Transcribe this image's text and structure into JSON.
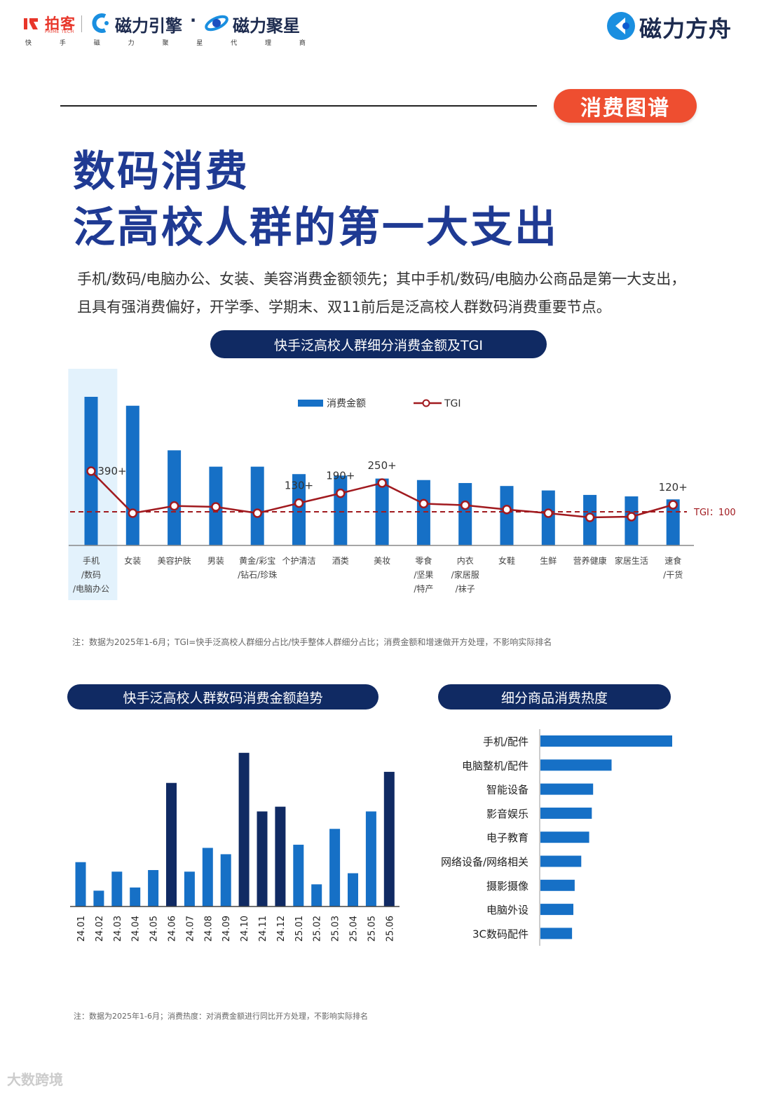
{
  "header": {
    "brand_paike": "拍客",
    "brand_paike_sub": "PRIME TECH",
    "brand_engine": "磁力引擎",
    "separator": "·",
    "brand_star": "磁力聚星",
    "sub_chars": [
      "快",
      "手",
      "磁",
      "力",
      "聚",
      "星",
      "代",
      "理",
      "商"
    ],
    "brand_ark": "磁力方舟"
  },
  "section_tag": "消费图谱",
  "title_line1": "数码消费",
  "title_line2": "泛高校人群的第一大支出",
  "description": "手机/数码/电脑办公、女装、美容消费金额领先；其中手机/数码/电脑办公商品是第一大支出，且具有强消费偏好，开学季、学期末、双11前后是泛高校人群数码消费重要节点。",
  "colors": {
    "bar": "#1670c6",
    "dark_bar": "#102a63",
    "tgi_line": "#a11a1f",
    "accent": "#ee4e30",
    "title": "#1f3a93"
  },
  "chart_data": [
    {
      "type": "bar+line",
      "title": "快手泛高校人群细分消费金额及TGI",
      "categories": [
        [
          "手机",
          "/数码",
          "/电脑办公"
        ],
        [
          "女装"
        ],
        [
          "美容护肤"
        ],
        [
          "男装"
        ],
        [
          "黄金/彩宝",
          "/钻石/珍珠"
        ],
        [
          "个护清洁"
        ],
        [
          "酒类"
        ],
        [
          "美妆"
        ],
        [
          "零食",
          "/坚果",
          "/特产"
        ],
        [
          "内衣",
          "/家居服",
          "/袜子"
        ],
        [
          "女鞋"
        ],
        [
          "生鲜"
        ],
        [
          "营养健康"
        ],
        [
          "家居生活"
        ],
        [
          "速食",
          "/干货"
        ]
      ],
      "series": [
        {
          "name": "消费金额",
          "values": [
            100,
            94,
            64,
            53,
            53,
            48,
            47,
            45,
            44,
            42,
            40,
            37,
            34,
            33,
            31
          ]
        },
        {
          "name": "TGI",
          "values": [
            390,
            90,
            142,
            135,
            90,
            162,
            232,
            305,
            158,
            147,
            116,
            90,
            60,
            65,
            150
          ]
        }
      ],
      "tgi_labels": [
        {
          "index": 0,
          "text": "390+"
        },
        {
          "index": 5,
          "text": "130+"
        },
        {
          "index": 6,
          "text": "190+"
        },
        {
          "index": 7,
          "text": "250+"
        },
        {
          "index": 14,
          "text": "120+"
        }
      ],
      "reference_label": "TGI：100",
      "reference_value": 100,
      "highlight_index": 0,
      "legend": [
        "消费金额",
        "TGI"
      ],
      "legend_position": "top-center"
    },
    {
      "type": "bar",
      "title": "快手泛高校人群数码消费金额趋势",
      "categories": [
        "24.01",
        "24.02",
        "24.03",
        "24.04",
        "24.05",
        "24.06",
        "24.07",
        "24.08",
        "24.09",
        "24.10",
        "24.11",
        "24.12",
        "25.01",
        "25.02",
        "25.03",
        "25.04",
        "25.05",
        "25.06"
      ],
      "values": [
        28,
        10,
        22,
        12,
        23,
        78,
        22,
        37,
        33,
        97,
        60,
        63,
        39,
        14,
        49,
        21,
        60,
        85
      ],
      "highlight": [
        false,
        false,
        false,
        false,
        false,
        true,
        false,
        false,
        false,
        true,
        true,
        true,
        false,
        false,
        false,
        false,
        false,
        true
      ]
    },
    {
      "type": "bar",
      "orientation": "horizontal",
      "title": "细分商品消费热度",
      "categories": [
        "手机/配件",
        "电脑整机/配件",
        "智能设备",
        "影音娱乐",
        "电子教育",
        "网络设备/网络相关",
        "摄影摄像",
        "电脑外设",
        "3C数码配件"
      ],
      "values": [
        100,
        54,
        40,
        39,
        37,
        31,
        26,
        25,
        24
      ]
    }
  ],
  "note1": "注：数据为2025年1-6月；TGI=快手泛高校人群细分占比/快手整体人群细分占比；消费金额和增速做开方处理，不影响实际排名",
  "note2": "注：数据为2025年1-6月；消费热度：对消费金额进行同比开方处理，不影响实际排名",
  "watermark": "大数跨境"
}
